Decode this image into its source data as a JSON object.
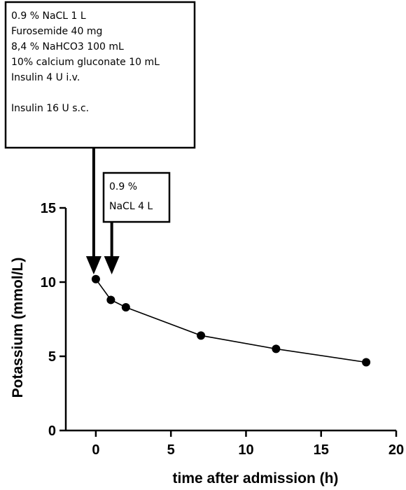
{
  "chart_data": {
    "type": "line",
    "title": "",
    "xlabel": "time after admission (h)",
    "ylabel": "Potassium (mmol/L)",
    "xlim": [
      -2,
      20
    ],
    "ylim": [
      0,
      15
    ],
    "xticks": [
      0,
      5,
      10,
      15,
      20
    ],
    "yticks": [
      0,
      5,
      10,
      15
    ],
    "grid": false,
    "series": [
      {
        "x": [
          0,
          1,
          2,
          7,
          12,
          18
        ],
        "y": [
          10.2,
          8.8,
          8.3,
          6.4,
          5.5,
          4.6
        ]
      }
    ],
    "annotations": [
      {
        "id": "first-treatment",
        "x": 0,
        "lines": [
          "0.9 % NaCL 1 L",
          "Furosemide 40 mg",
          "8,4 % NaHCO3 100 mL",
          "10% calcium gluconate 10 mL",
          "Insulin 4 U i.v.",
          "",
          "Insulin 16 U s.c."
        ]
      },
      {
        "id": "second-treatment",
        "x": 1.2,
        "lines": [
          "0.9 %",
          "NaCL 4 L"
        ]
      }
    ]
  }
}
